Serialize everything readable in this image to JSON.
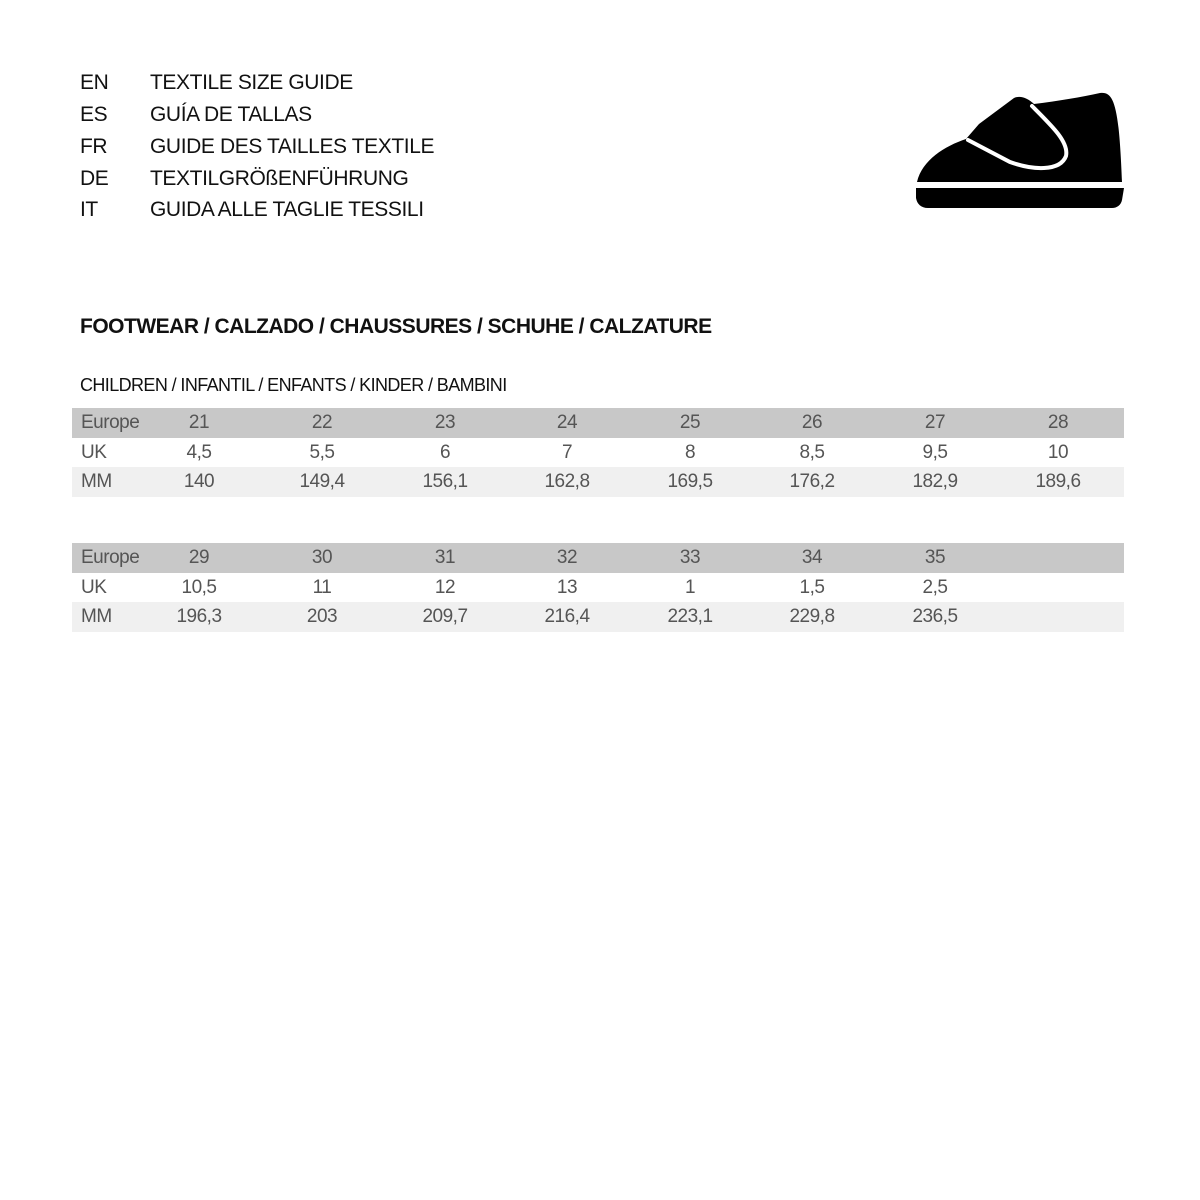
{
  "languages": [
    {
      "code": "EN",
      "title": "TEXTILE SIZE GUIDE"
    },
    {
      "code": "ES",
      "title": "GUÍA DE TALLAS"
    },
    {
      "code": "FR",
      "title": "GUIDE DES TAILLES TEXTILE"
    },
    {
      "code": "DE",
      "title": "TEXTILGRÖßENFÜHRUNG"
    },
    {
      "code": "IT",
      "title": "GUIDA ALLE TAGLIE TESSILI"
    }
  ],
  "icon": "children-shoe-icon",
  "section_title": "FOOTWEAR / CALZADO / CHAUSSURES / SCHUHE / CALZATURE",
  "subsection_title": "CHILDREN / INFANTIL / ENFANTS / KINDER / BAMBINI",
  "tables": [
    {
      "rows": [
        {
          "label": "Europe",
          "values": [
            "21",
            "22",
            "23",
            "24",
            "25",
            "26",
            "27",
            "28"
          ]
        },
        {
          "label": "UK",
          "values": [
            "4,5",
            "5,5",
            "6",
            "7",
            "8",
            "8,5",
            "9,5",
            "10"
          ]
        },
        {
          "label": "MM",
          "values": [
            "140",
            "149,4",
            "156,1",
            "162,8",
            "169,5",
            "176,2",
            "182,9",
            "189,6"
          ]
        }
      ]
    },
    {
      "rows": [
        {
          "label": "Europe",
          "values": [
            "29",
            "30",
            "31",
            "32",
            "33",
            "34",
            "35"
          ]
        },
        {
          "label": "UK",
          "values": [
            "10,5",
            "11",
            "12",
            "13",
            "1",
            "1,5",
            "2,5"
          ]
        },
        {
          "label": "MM",
          "values": [
            "196,3",
            "203",
            "209,7",
            "216,4",
            "223,1",
            "229,8",
            "236,5"
          ]
        }
      ]
    }
  ],
  "colors": {
    "header_row": "#c8c8c8",
    "alt_row": "#f0f0f0"
  }
}
